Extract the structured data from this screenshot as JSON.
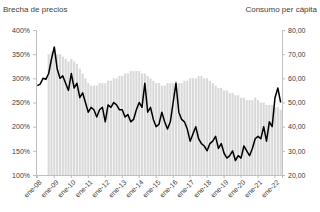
{
  "chart_data": {
    "type": "line",
    "y_label": "Brecha de precios",
    "y2_label": "Consumo per cápita",
    "categories": [
      "ene-08",
      null,
      null,
      null,
      null,
      null,
      "ene-09",
      null,
      null,
      null,
      null,
      null,
      "ene-10",
      null,
      null,
      null,
      null,
      null,
      "ene-11",
      null,
      null,
      null,
      null,
      null,
      "ene-12",
      null,
      null,
      null,
      null,
      null,
      "ene-13",
      null,
      null,
      null,
      null,
      null,
      "ene-14",
      null,
      null,
      null,
      null,
      null,
      "ene-15",
      null,
      null,
      null,
      null,
      null,
      "ene-16",
      null,
      null,
      null,
      null,
      null,
      "ene-17",
      null,
      null,
      null,
      null,
      null,
      "ene-18",
      null,
      null,
      null,
      null,
      null,
      "ene-19",
      null,
      null,
      null,
      null,
      null,
      "ene-20",
      null,
      null,
      null,
      null,
      null,
      "ene-21",
      null,
      null,
      null,
      null,
      null,
      "ene-22",
      null,
      null
    ],
    "series": [
      {
        "type": "bar",
        "axis": "y2",
        "color": "#d9d9d9",
        "values": [
          null,
          null,
          null,
          null,
          70,
          71,
          71,
          70,
          70,
          69,
          68,
          67,
          68,
          67,
          66,
          64,
          62,
          60,
          58,
          57,
          57,
          57,
          58,
          58,
          58,
          59,
          59,
          60,
          60,
          61,
          61,
          62,
          62,
          63,
          63,
          63,
          63,
          62,
          62,
          61,
          60,
          59,
          58,
          58,
          57,
          57,
          58,
          58,
          58,
          59,
          58,
          58,
          59,
          59,
          60,
          60,
          60,
          61,
          61,
          60,
          60,
          59,
          58,
          57,
          56,
          56,
          55,
          55,
          54,
          54,
          53,
          53,
          52,
          52,
          51,
          51,
          51,
          52,
          51,
          50,
          50,
          49,
          49,
          49,
          48,
          48,
          47
        ]
      },
      {
        "type": "line",
        "color": "#000000",
        "values": [
          285,
          288,
          300,
          298,
          310,
          340,
          365,
          320,
          300,
          305,
          290,
          275,
          310,
          280,
          290,
          260,
          270,
          250,
          230,
          240,
          235,
          220,
          235,
          240,
          210,
          245,
          240,
          250,
          245,
          235,
          235,
          220,
          225,
          210,
          215,
          235,
          250,
          240,
          290,
          230,
          240,
          215,
          200,
          205,
          230,
          210,
          195,
          210,
          250,
          290,
          230,
          215,
          210,
          195,
          170,
          185,
          200,
          175,
          165,
          160,
          150,
          165,
          170,
          180,
          155,
          165,
          145,
          135,
          140,
          150,
          130,
          140,
          135,
          160,
          150,
          140,
          155,
          175,
          180,
          175,
          200,
          170,
          210,
          200,
          260,
          280,
          250
        ]
      }
    ],
    "ylim": [
      100,
      400
    ],
    "yticks": [
      {
        "value": 100,
        "label": "100%"
      },
      {
        "value": 150,
        "label": "150%"
      },
      {
        "value": 200,
        "label": "200%"
      },
      {
        "value": 250,
        "label": "250%"
      },
      {
        "value": 300,
        "label": "300%"
      },
      {
        "value": 350,
        "label": "350%"
      },
      {
        "value": 400,
        "label": "400%"
      }
    ],
    "y2lim": [
      20,
      80
    ],
    "y2ticks": [
      {
        "value": 20,
        "label": "20,00"
      },
      {
        "value": 30,
        "label": "30,00"
      },
      {
        "value": 40,
        "label": "40,00"
      },
      {
        "value": 50,
        "label": "50,00"
      },
      {
        "value": 60,
        "label": "60,00"
      },
      {
        "value": 70,
        "label": "70,00"
      },
      {
        "value": 80,
        "label": "80,00"
      }
    ]
  }
}
